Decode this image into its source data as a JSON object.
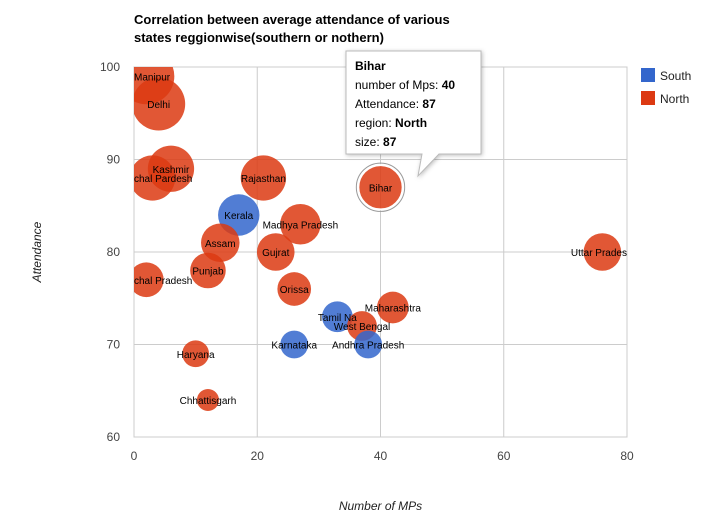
{
  "chart_data": {
    "type": "bubble",
    "title": "Correlation between average attendance of various states reggionwise(southern or nothern)",
    "xlabel": "Number of MPs",
    "ylabel": "Attendance",
    "xlim": [
      0,
      80
    ],
    "ylim": [
      60,
      100
    ],
    "x_ticks": [
      "0",
      "20",
      "40",
      "60",
      "80"
    ],
    "y_ticks": [
      "60",
      "70",
      "80",
      "90",
      "100"
    ],
    "grid": true,
    "legend_position": "right",
    "series": [
      {
        "name": "South",
        "color": "#3366cc"
      },
      {
        "name": "North",
        "color": "#dc3912"
      }
    ],
    "points": [
      {
        "label": "Manipur",
        "x": 2,
        "y": 99,
        "region": "North",
        "size": 99
      },
      {
        "label": "Delhi",
        "x": 4,
        "y": 96,
        "region": "North",
        "size": 96
      },
      {
        "label": "Jammu and Kashmir",
        "x": 6,
        "y": 89,
        "region": "North",
        "size": 89
      },
      {
        "label": "Himachal Pradesh",
        "x": 3,
        "y": 88,
        "region": "North",
        "size": 88
      },
      {
        "label": "Rajasthan",
        "x": 21,
        "y": 88,
        "region": "North",
        "size": 88
      },
      {
        "label": "Bihar",
        "x": 40,
        "y": 87,
        "region": "North",
        "size": 87
      },
      {
        "label": "Kerala",
        "x": 17,
        "y": 84,
        "region": "South",
        "size": 84
      },
      {
        "label": "Madhya Pradesh",
        "x": 27,
        "y": 83,
        "region": "North",
        "size": 83
      },
      {
        "label": "Assam",
        "x": 14,
        "y": 81,
        "region": "North",
        "size": 81
      },
      {
        "label": "Gujrat",
        "x": 23,
        "y": 80,
        "region": "North",
        "size": 80
      },
      {
        "label": "Uttar Pradesh",
        "x": 76,
        "y": 80,
        "region": "North",
        "size": 80
      },
      {
        "label": "Punjab",
        "x": 12,
        "y": 78,
        "region": "North",
        "size": 78
      },
      {
        "label": "Arunachal Pradesh",
        "x": 2,
        "y": 77,
        "region": "North",
        "size": 77
      },
      {
        "label": "Orissa",
        "x": 26,
        "y": 76,
        "region": "North",
        "size": 76
      },
      {
        "label": "Maharashtra",
        "x": 42,
        "y": 74,
        "region": "North",
        "size": 74
      },
      {
        "label": "Tamil Nadu",
        "x": 33,
        "y": 73,
        "region": "South",
        "size": 73
      },
      {
        "label": "West Bengal",
        "x": 37,
        "y": 72,
        "region": "North",
        "size": 72
      },
      {
        "label": "Karnataka",
        "x": 26,
        "y": 70,
        "region": "South",
        "size": 70
      },
      {
        "label": "Andhra Pradesh",
        "x": 38,
        "y": 70,
        "region": "South",
        "size": 70
      },
      {
        "label": "Haryana",
        "x": 10,
        "y": 69,
        "region": "North",
        "size": 69
      },
      {
        "label": "Chhattisgarh",
        "x": 12,
        "y": 64,
        "region": "North",
        "size": 64
      }
    ],
    "bubble_labels": {
      "Manipur": "Manipur",
      "Delhi": "Delhi",
      "Jammu and Kashmir": "Kashmir",
      "Himachal Pradesh": "chal Pardesh",
      "Rajasthan": "Rajasthan",
      "Bihar": "Bihar",
      "Kerala": "Kerala",
      "Madhya Pradesh": "Madhya Pradesh",
      "Assam": "Assam",
      "Gujrat": "Gujrat",
      "Uttar Pradesh": "Uttar Prades",
      "Punjab": "Punjab",
      "Arunachal Pradesh": "chal Pradesh",
      "Orissa": "Orissa",
      "Maharashtra": "Maharashtra",
      "Tamil Nadu": "Tamil Na",
      "West Bengal": "West Bengal",
      "Karnataka": "Karnataka",
      "Andhra Pradesh": "Andhra Pradesh",
      "Haryana": "Haryana",
      "Chhattisgarh": "Chhattisgarh"
    },
    "tooltip": {
      "title": "Bihar",
      "lines": [
        {
          "label": "number of Mps: ",
          "value": "40"
        },
        {
          "label": "Attendance: ",
          "value": "87"
        },
        {
          "label": "region: ",
          "value": "North"
        },
        {
          "label": "size: ",
          "value": "87"
        }
      ]
    }
  }
}
